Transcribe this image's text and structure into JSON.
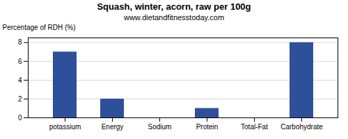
{
  "chart_data": {
    "type": "bar",
    "title": "Squash, winter, acorn, raw per 100g",
    "subtitle": "www.dietandfitnesstoday.com",
    "categories": [
      "potassium",
      "Energy",
      "Sodium",
      "Protein",
      "Total-Fat",
      "Carbohydrate"
    ],
    "values": [
      7,
      2,
      0,
      1,
      0,
      8
    ],
    "color": "#2e4f9a",
    "ylabel": "Percentage of RDH (%)",
    "ylim": [
      0,
      8.5
    ],
    "yticks": [
      0,
      2,
      4,
      6,
      8
    ],
    "grid": true
  }
}
